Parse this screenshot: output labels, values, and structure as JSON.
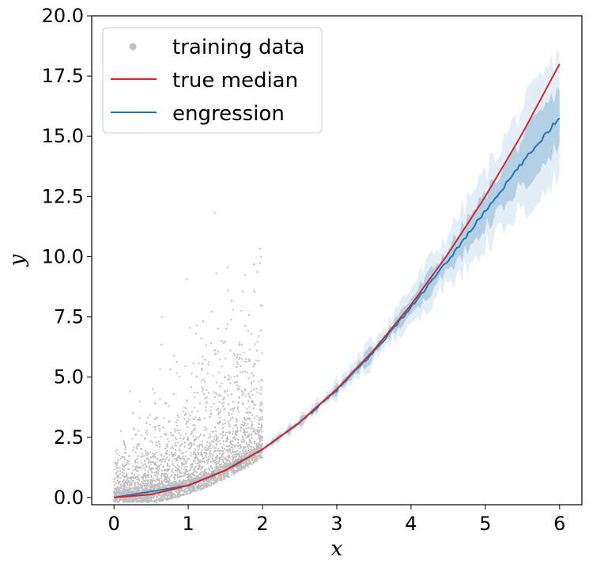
{
  "chart_data": {
    "type": "scatter",
    "xlabel": "x",
    "ylabel": "y",
    "xlim": [
      -0.3,
      6.3
    ],
    "ylim": [
      -0.3,
      20.0
    ],
    "xticks": [
      0,
      1,
      2,
      3,
      4,
      5,
      6
    ],
    "yticks": [
      0.0,
      2.5,
      5.0,
      7.5,
      10.0,
      12.5,
      15.0,
      17.5,
      20.0
    ],
    "xtick_labels": [
      "0",
      "1",
      "2",
      "3",
      "4",
      "5",
      "6"
    ],
    "ytick_labels": [
      "0.0",
      "2.5",
      "5.0",
      "7.5",
      "10.0",
      "12.5",
      "15.0",
      "17.5",
      "20.0"
    ],
    "grid": false,
    "legend_position": "top-left",
    "series": [
      {
        "name": "training data",
        "kind": "scatter",
        "color": "#bfbfbf",
        "x_range": [
          0,
          2
        ],
        "note_points": "dense cloud of several thousand points for x in [0,2], spread above the median curve"
      },
      {
        "name": "true median",
        "kind": "line",
        "color": "#d62728",
        "x": [
          0,
          0.5,
          1,
          1.5,
          2,
          2.5,
          3,
          3.5,
          4,
          4.5,
          5,
          5.5,
          6
        ],
        "y": [
          0.0,
          0.25,
          0.5,
          1.13,
          2.0,
          3.13,
          4.5,
          6.13,
          8.0,
          10.13,
          12.5,
          15.13,
          18.0
        ]
      },
      {
        "name": "engression",
        "kind": "line",
        "color": "#1f77b4",
        "x": [
          0,
          0.5,
          1,
          1.5,
          2,
          2.5,
          3,
          3.5,
          4,
          4.5,
          5,
          5.5,
          6
        ],
        "y": [
          0.0,
          0.25,
          0.5,
          1.13,
          2.0,
          3.1,
          4.45,
          6.05,
          7.9,
          9.85,
          11.9,
          13.9,
          15.8
        ],
        "band_outer_lower": [
          0.0,
          0.22,
          0.45,
          1.05,
          1.9,
          2.95,
          4.2,
          5.6,
          7.2,
          8.8,
          10.4,
          12.0,
          13.3
        ],
        "band_outer_upper": [
          0.0,
          0.28,
          0.55,
          1.2,
          2.1,
          3.3,
          4.8,
          6.6,
          8.7,
          11.0,
          13.5,
          16.2,
          18.5
        ],
        "band_inner_lower": [
          0.0,
          0.24,
          0.48,
          1.1,
          1.96,
          3.03,
          4.35,
          5.85,
          7.6,
          9.4,
          11.2,
          13.0,
          14.6
        ],
        "band_inner_upper": [
          0.0,
          0.26,
          0.52,
          1.16,
          2.04,
          3.2,
          4.6,
          6.3,
          8.25,
          10.35,
          12.6,
          14.9,
          17.0
        ]
      }
    ]
  }
}
